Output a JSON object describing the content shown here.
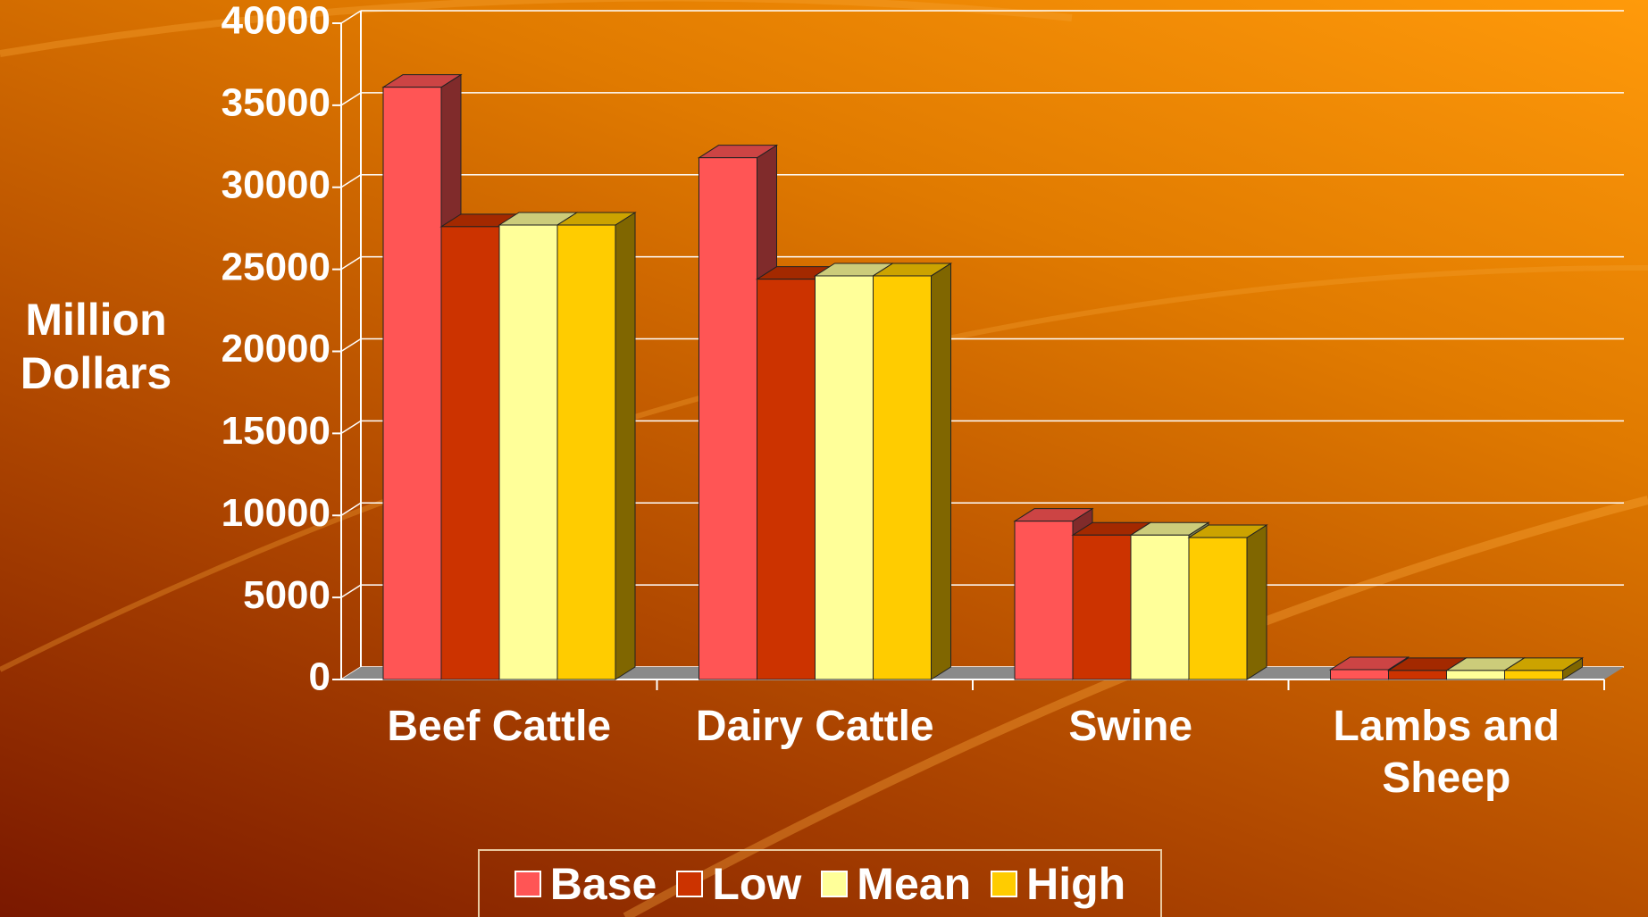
{
  "chart_data": {
    "type": "bar3d",
    "y_label": "Million Dollars",
    "categories": [
      "Beef Cattle",
      "Dairy Cattle",
      "Swine",
      "Lambs and Sheep"
    ],
    "series": [
      {
        "name": "Base",
        "color": "#ff5555",
        "values": [
          36100,
          31800,
          9650,
          600
        ]
      },
      {
        "name": "Low",
        "color": "#cc3300",
        "values": [
          27600,
          24400,
          8800,
          550
        ]
      },
      {
        "name": "Mean",
        "color": "#ffff99",
        "values": [
          27700,
          24600,
          8800,
          550
        ]
      },
      {
        "name": "High",
        "color": "#ffcc00",
        "values": [
          27700,
          24600,
          8650,
          550
        ]
      }
    ],
    "ylim": [
      0,
      40000
    ],
    "yticks": [
      0,
      5000,
      10000,
      15000,
      20000,
      25000,
      30000,
      35000,
      40000
    ],
    "grid": true,
    "legend": "bottom"
  }
}
